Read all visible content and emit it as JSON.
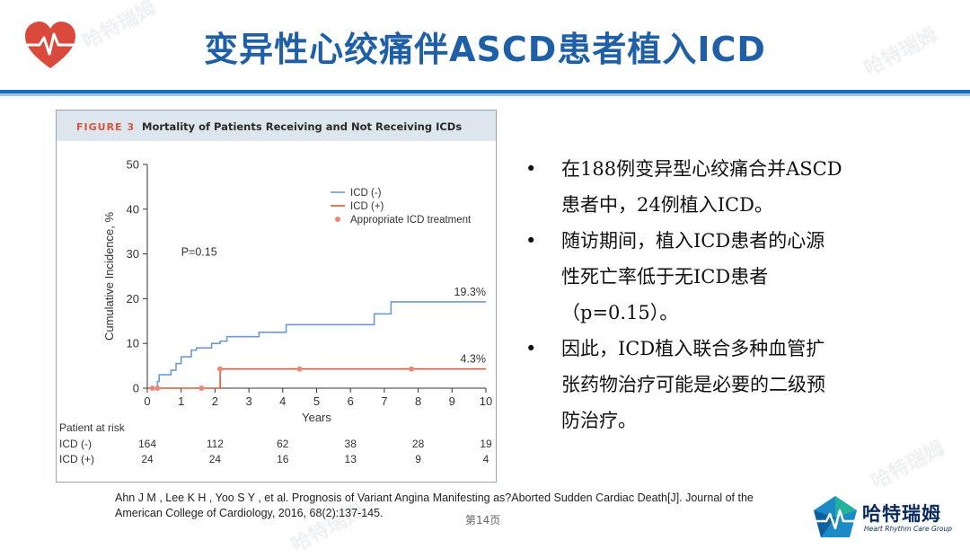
{
  "slide": {
    "title": "变异性心绞痛伴ASCD患者植入ICD",
    "page": "第14页",
    "colors": {
      "title": "#1f5fa8",
      "accent": "#1d6fb8",
      "heart": "#d94a3d"
    }
  },
  "watermark": {
    "text": "哈特瑞姆"
  },
  "logo": {
    "cn": "哈特瑞姆",
    "en": "Heart Rhythm Care Group",
    "icon": "heart-rhythm-logo-icon"
  },
  "figure": {
    "label": "FIGURE 3",
    "title": "Mortality of Patients Receiving and Not Receiving ICDs"
  },
  "chart_data": {
    "type": "line",
    "ylabel": "Cumulative Incidence, %",
    "xlabel": "Years",
    "xlim": [
      0,
      10
    ],
    "ylim": [
      0,
      50
    ],
    "x_ticks": [
      "0",
      "1",
      "2",
      "3",
      "4",
      "5",
      "6",
      "7",
      "8",
      "9",
      "10"
    ],
    "y_ticks": [
      "0",
      "10",
      "20",
      "30",
      "40",
      "50"
    ],
    "legend_position": "top-right",
    "p_value": "P=0.15",
    "series": [
      {
        "name": "ICD (-)",
        "color": "#6d9ccc",
        "end_label": "19.3%",
        "points": [
          [
            0,
            0
          ],
          [
            0.3,
            0
          ],
          [
            0.3,
            1.5
          ],
          [
            0.35,
            1.5
          ],
          [
            0.35,
            3
          ],
          [
            0.7,
            3
          ],
          [
            0.7,
            4
          ],
          [
            0.85,
            4
          ],
          [
            0.85,
            5.5
          ],
          [
            1.0,
            5.5
          ],
          [
            1.0,
            7
          ],
          [
            1.3,
            7
          ],
          [
            1.3,
            8.5
          ],
          [
            1.45,
            8.5
          ],
          [
            1.45,
            9
          ],
          [
            1.9,
            9
          ],
          [
            1.9,
            10
          ],
          [
            2.15,
            10
          ],
          [
            2.15,
            10.5
          ],
          [
            2.35,
            10.5
          ],
          [
            2.35,
            11.5
          ],
          [
            3.3,
            11.5
          ],
          [
            3.3,
            12.5
          ],
          [
            4.1,
            12.5
          ],
          [
            4.1,
            14.2
          ],
          [
            6.7,
            14.2
          ],
          [
            6.7,
            16.6
          ],
          [
            7.2,
            16.6
          ],
          [
            7.2,
            19.3
          ],
          [
            10,
            19.3
          ]
        ]
      },
      {
        "name": "ICD (+)",
        "color": "#d9593b",
        "end_label": "4.3%",
        "points": [
          [
            0,
            0
          ],
          [
            2.15,
            0
          ],
          [
            2.15,
            4.3
          ],
          [
            10,
            4.3
          ]
        ]
      }
    ],
    "markers": {
      "name": "Appropriate ICD treatment",
      "color": "#e98973",
      "points": [
        [
          0.15,
          0
        ],
        [
          0.3,
          0
        ],
        [
          1.6,
          0
        ],
        [
          2.15,
          4.3
        ],
        [
          4.5,
          4.3
        ],
        [
          7.8,
          4.3
        ]
      ]
    },
    "at_risk": {
      "label": "Patient at risk",
      "rows": [
        {
          "name": "ICD (-)",
          "values": [
            "164",
            "112",
            "62",
            "38",
            "28",
            "19"
          ]
        },
        {
          "name": "ICD (+)",
          "values": [
            "24",
            "24",
            "16",
            "13",
            "9",
            "4"
          ]
        }
      ],
      "at_years": [
        0,
        2,
        4,
        6,
        8,
        10
      ]
    }
  },
  "bullets": [
    {
      "marker": "•",
      "lines": [
        "在188例变异型心绞痛合并ASCD",
        "患者中，24例植入ICD。"
      ]
    },
    {
      "marker": "•",
      "lines": [
        "随访期间，植入ICD患者的心源",
        "性死亡率低于无ICD患者",
        "（p=0.15）。"
      ]
    },
    {
      "marker": "•",
      "lines": [
        "因此，ICD植入联合多种血管扩",
        "张药物治疗可能是必要的二级预",
        "防治疗。"
      ]
    }
  ],
  "citation": {
    "line1": "Ahn J M , Lee K H , Yoo S Y , et al. Prognosis of Variant Angina Manifesting as?Aborted Sudden Cardiac Death[J]. Journal of the",
    "line2": "American College of Cardiology, 2016, 68(2):137-145."
  }
}
